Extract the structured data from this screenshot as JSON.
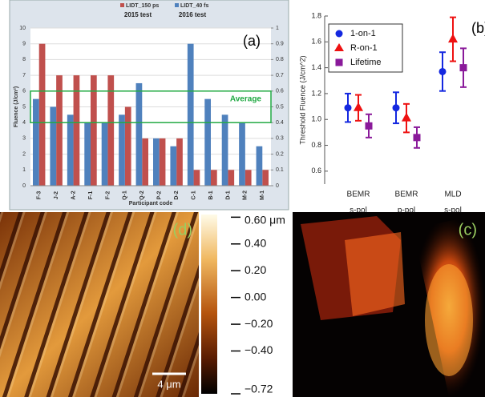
{
  "chart_data": [
    {
      "type": "bar",
      "label": "(a)",
      "subtitles": [
        "2015 test",
        "2016 test"
      ],
      "y_label": "Fluence (J/cm²)",
      "x_label": "Participant code",
      "categories": [
        "F-3",
        "J-2",
        "A-2",
        "F-1",
        "F-2",
        "Q-1",
        "Q-2",
        "P-2",
        "D-2",
        "C-1",
        "B-1",
        "D-1",
        "M-2",
        "M-1"
      ],
      "series": [
        {
          "name": "LIDT_150 ps",
          "color": "#c0504d",
          "values": [
            9,
            7,
            7,
            7,
            7,
            5,
            3,
            3,
            3,
            1,
            1,
            1,
            1,
            1
          ]
        },
        {
          "name": "LIDT_40 fs",
          "color": "#4f81bd",
          "axis": "y2",
          "values": [
            0.55,
            0.5,
            0.45,
            0.4,
            0.4,
            0.45,
            0.65,
            0.3,
            0.25,
            0.9,
            0.55,
            0.45,
            0.4,
            0.25
          ]
        }
      ],
      "ylim": [
        0,
        10
      ],
      "yticks": [
        0,
        1,
        2,
        3,
        4,
        5,
        6,
        7,
        8,
        9,
        10
      ],
      "y2lim": [
        0,
        1
      ],
      "y2ticks": [
        0,
        0.1,
        0.2,
        0.3,
        0.4,
        0.5,
        0.6,
        0.7,
        0.8,
        0.9,
        1
      ],
      "average": {
        "label": "Average",
        "range": [
          4,
          6
        ],
        "color": "#22aa44"
      }
    },
    {
      "type": "errorbar",
      "label": "(b)",
      "y_label": "Threshold Fluence (J/cm^2)",
      "categories": [
        [
          "BEMR",
          "s-pol"
        ],
        [
          "BEMR",
          "p-pol"
        ],
        [
          "MLD",
          "s-pol"
        ]
      ],
      "series": [
        {
          "name": "1-on-1",
          "color": "#1428e0",
          "marker": "circle",
          "values": [
            1.09,
            1.09,
            1.37
          ],
          "errors": [
            0.11,
            0.12,
            0.15
          ]
        },
        {
          "name": "R-on-1",
          "color": "#ee1111",
          "marker": "triangle",
          "values": [
            1.09,
            1.01,
            1.62
          ],
          "errors": [
            0.1,
            0.11,
            0.17
          ]
        },
        {
          "name": "Lifetime",
          "color": "#8a1a9a",
          "marker": "square",
          "values": [
            0.95,
            0.86,
            1.4
          ],
          "errors": [
            0.09,
            0.08,
            0.15
          ]
        }
      ],
      "ylim": [
        0.5,
        1.8
      ],
      "yticks": [
        {
          "value": 0.6,
          "label": "0.6"
        },
        {
          "value": 0.8,
          "label": "0.8"
        },
        {
          "value": 1.0,
          "label": "1.0"
        },
        {
          "value": 1.2,
          "label": "1.2"
        },
        {
          "value": 1.4,
          "label": "1.4"
        },
        {
          "value": 1.6,
          "label": "1.6"
        },
        {
          "value": 1.8,
          "label": "1.8"
        }
      ]
    },
    {
      "type": "image",
      "label": "(d)",
      "scale_bar": "4 μm",
      "clim": [
        -0.72,
        0.62
      ],
      "cticks": [
        {
          "value": 0.6,
          "label": "0.60 μm"
        },
        {
          "value": 0.4,
          "label": "0.40"
        },
        {
          "value": 0.2,
          "label": "0.20"
        },
        {
          "value": 0,
          "label": "0.00"
        },
        {
          "value": -0.2,
          "label": "−0.20"
        },
        {
          "value": -0.4,
          "label": "−0.40"
        },
        {
          "value": -0.72,
          "label": "−0.72"
        }
      ]
    }
  ],
  "photo": {
    "label": "(c)"
  }
}
